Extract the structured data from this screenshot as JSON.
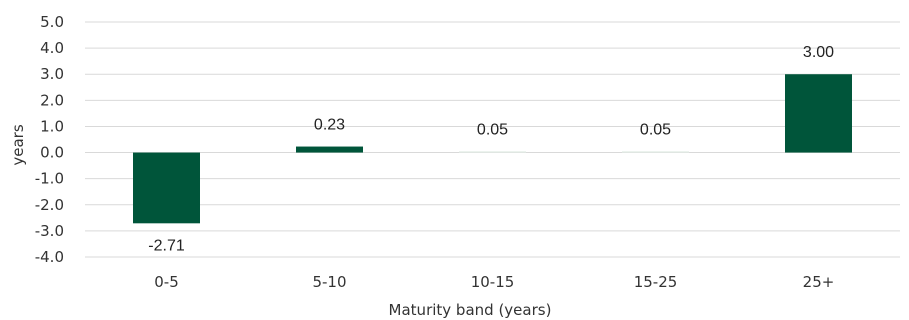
{
  "chart_data": {
    "type": "bar",
    "categories": [
      "0-5",
      "5-10",
      "10-15",
      "15-25",
      "25+"
    ],
    "values": [
      -2.71,
      0.23,
      0.05,
      0.05,
      3.0
    ],
    "data_labels": [
      "-2.71",
      "0.23",
      "0.05",
      "0.05",
      "3.00"
    ],
    "title": "",
    "xlabel": "Maturity band (years)",
    "ylabel": "years",
    "ylim": [
      -4.0,
      5.0
    ],
    "yticks": [
      "-4.0",
      "-3.0",
      "-2.0",
      "-1.0",
      "0.0",
      "1.0",
      "2.0",
      "3.0",
      "4.0",
      "5.0"
    ],
    "grid": true,
    "legend": "none",
    "colors": {
      "bar": "#00553a",
      "bar_small": "#e6efe9",
      "grid": "#d9d9d9"
    }
  }
}
